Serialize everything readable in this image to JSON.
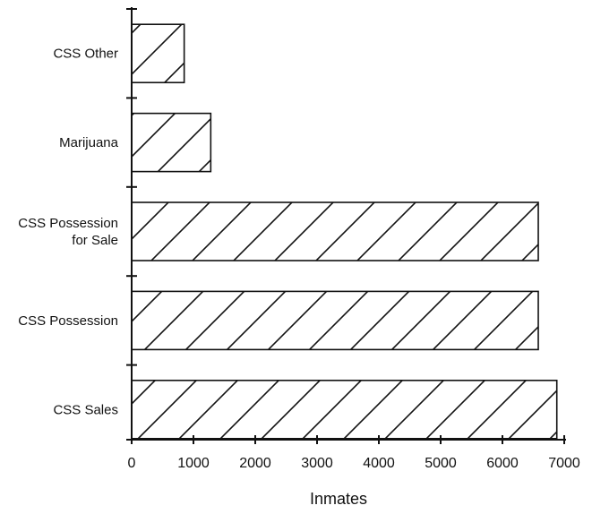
{
  "chart_data": {
    "type": "bar",
    "orientation": "horizontal",
    "categories": [
      "CSS Other",
      "Marijuana",
      "CSS Possession\nfor Sale",
      "CSS Possession",
      "CSS Sales"
    ],
    "values": [
      850,
      1280,
      6580,
      6580,
      6880
    ],
    "xlabel": "Inmates",
    "ylabel": "",
    "xlim": [
      0,
      7000
    ],
    "xticks": [
      0,
      1000,
      2000,
      3000,
      4000,
      5000,
      6000,
      7000
    ],
    "grid": false,
    "bar_fill": "diagonal-hatch",
    "colors": {
      "ink": "#111111",
      "background": "#ffffff"
    }
  }
}
